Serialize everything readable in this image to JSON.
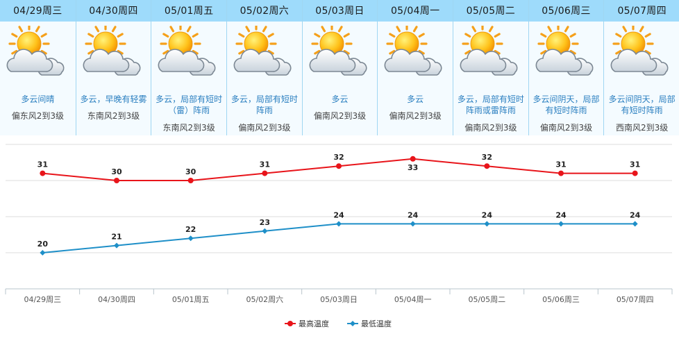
{
  "days": [
    {
      "date": "04/29周三",
      "desc": [
        "多云间晴"
      ],
      "wind": "偏东风2到3级"
    },
    {
      "date": "04/30周四",
      "desc": [
        "多云，早晚有轻雾"
      ],
      "wind": "东南风2到3级"
    },
    {
      "date": "05/01周五",
      "desc": [
        "多云，局部有短时",
        "（雷）阵雨"
      ],
      "wind": "东南风2到3级"
    },
    {
      "date": "05/02周六",
      "desc": [
        "多云，局部有短时",
        "阵雨"
      ],
      "wind": "偏南风2到3级"
    },
    {
      "date": "05/03周日",
      "desc": [
        "多云"
      ],
      "wind": "偏南风2到3级"
    },
    {
      "date": "05/04周一",
      "desc": [
        "多云"
      ],
      "wind": "偏南风2到3级"
    },
    {
      "date": "05/05周二",
      "desc": [
        "多云，局部有短时",
        "阵雨或雷阵雨"
      ],
      "wind": "偏南风2到3级"
    },
    {
      "date": "05/06周三",
      "desc": [
        "多云间阴天，局部",
        "有短时阵雨"
      ],
      "wind": "偏南风2到3级"
    },
    {
      "date": "05/07周四",
      "desc": [
        "多云间阴天，局部",
        "有短时阵雨"
      ],
      "wind": "西南风2到3级"
    }
  ],
  "icon": "sun-behind-cloud-icon",
  "colors": {
    "high": "#e8141a",
    "low": "#1e8fc8",
    "header": "#9edbfb"
  },
  "chart_data": {
    "type": "line",
    "categories": [
      "04/29周三",
      "04/30周四",
      "05/01周五",
      "05/02周六",
      "05/03周日",
      "05/04周一",
      "05/05周二",
      "05/06周三",
      "05/07周四"
    ],
    "series": [
      {
        "name": "最高温度",
        "values": [
          31,
          30,
          30,
          31,
          32,
          33,
          32,
          31,
          31
        ]
      },
      {
        "name": "最低温度",
        "values": [
          20,
          21,
          22,
          23,
          24,
          24,
          24,
          24,
          24
        ]
      }
    ],
    "ylim": [
      15,
      35
    ],
    "grid": true,
    "legend": "bottom-center"
  }
}
